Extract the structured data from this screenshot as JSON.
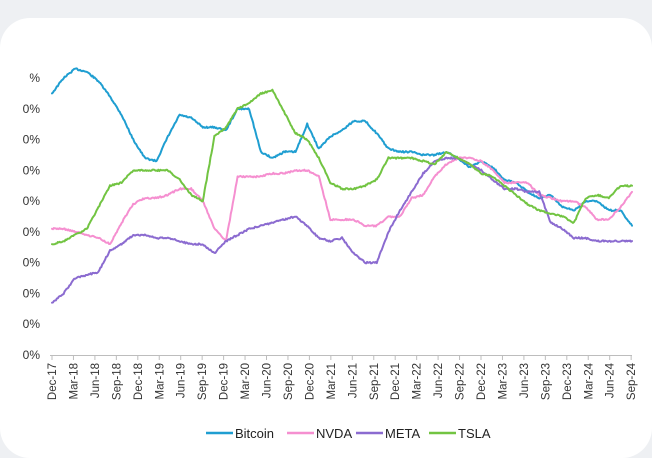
{
  "chart_data": {
    "type": "line",
    "title": "",
    "xlabel": "",
    "ylabel": "",
    "y_tick_labels": [
      "%",
      "0%",
      "0%",
      "0%",
      "0%",
      "0%",
      "0%",
      "0%",
      "0%",
      "0%"
    ],
    "x_tick_labels": [
      "Dec-17",
      "Mar-18",
      "Jun-18",
      "Sep-18",
      "Dec-18",
      "Mar-19",
      "Jun-19",
      "Sep-19",
      "Dec-19",
      "Mar-20",
      "Jun-20",
      "Sep-20",
      "Dec-20",
      "Mar-21",
      "Jun-21",
      "Sep-21",
      "Dec-21",
      "Mar-22",
      "Jun-22",
      "Sep-22",
      "Dec-22",
      "Mar-23",
      "Jun-23",
      "Sep-23",
      "Dec-23",
      "Mar-24",
      "Jun-24",
      "Sep-24"
    ],
    "ylim": [
      0,
      90
    ],
    "grid": false,
    "legend_position": "bottom",
    "series": [
      {
        "name": "Bitcoin",
        "color": "#1f9ed1",
        "values": [
          85,
          90,
          93,
          92,
          89,
          84,
          78,
          70,
          64,
          63,
          71,
          78,
          77,
          74,
          74,
          73,
          80,
          80,
          66,
          64,
          66,
          66,
          75,
          67,
          71,
          73,
          76,
          76,
          72,
          67,
          66,
          66,
          65,
          65,
          66,
          64,
          61,
          63,
          61,
          57,
          56,
          53,
          51,
          52,
          48,
          47,
          50,
          50,
          47,
          47,
          42
        ]
      },
      {
        "name": "NVDA",
        "color": "#f58fd0",
        "values": [
          41,
          41,
          40,
          39,
          38,
          36,
          43,
          49,
          51,
          51,
          52,
          54,
          54,
          50,
          41,
          37,
          58,
          58,
          58,
          59,
          59,
          60,
          60,
          58,
          44,
          44,
          44,
          42,
          42,
          45,
          45,
          51,
          52,
          58,
          62,
          64,
          64,
          63,
          60,
          56,
          56,
          56,
          52,
          51,
          50,
          50,
          48,
          44,
          44,
          48,
          53
        ]
      },
      {
        "name": "META",
        "color": "#8b6bd0",
        "values": [
          17,
          20,
          25,
          26,
          27,
          34,
          36,
          39,
          39,
          38,
          38,
          37,
          36,
          36,
          33,
          37,
          39,
          41,
          42,
          43,
          44,
          45,
          42,
          38,
          37,
          38,
          33,
          30,
          30,
          40,
          47,
          53,
          59,
          63,
          64,
          64,
          62,
          60,
          57,
          54,
          54,
          53,
          53,
          43,
          41,
          38,
          38,
          37,
          37,
          37,
          37
        ]
      },
      {
        "name": "TSLA",
        "color": "#72c442",
        "values": [
          36,
          37,
          39,
          41,
          48,
          55,
          56,
          60,
          60,
          60,
          60,
          57,
          52,
          50,
          71,
          74,
          80,
          82,
          85,
          86,
          79,
          72,
          70,
          64,
          56,
          54,
          54,
          55,
          57,
          64,
          64,
          64,
          63,
          62,
          66,
          64,
          62,
          59,
          58,
          55,
          52,
          49,
          47,
          46,
          45,
          43,
          51,
          52,
          51,
          55,
          55
        ]
      }
    ]
  }
}
